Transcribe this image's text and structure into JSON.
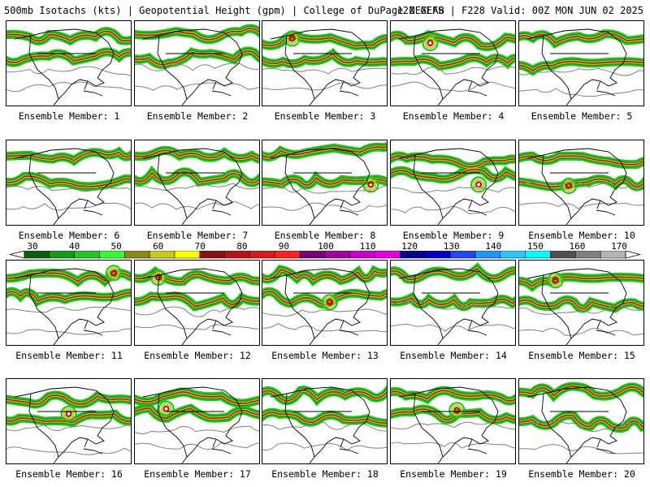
{
  "header": {
    "left": "500mb Isotachs (kts) | Geopotential Height (gpm) | College of DuPage NEXLAB",
    "right": "12Z GEFS | F228 Valid: 00Z MON JUN 02 2025"
  },
  "members": [
    "Ensemble Member: 1",
    "Ensemble Member: 2",
    "Ensemble Member: 3",
    "Ensemble Member: 4",
    "Ensemble Member: 5",
    "Ensemble Member: 6",
    "Ensemble Member: 7",
    "Ensemble Member: 8",
    "Ensemble Member: 9",
    "Ensemble Member: 10",
    "Ensemble Member: 11",
    "Ensemble Member: 12",
    "Ensemble Member: 13",
    "Ensemble Member: 14",
    "Ensemble Member: 15",
    "Ensemble Member: 16",
    "Ensemble Member: 17",
    "Ensemble Member: 18",
    "Ensemble Member: 19",
    "Ensemble Member: 20"
  ],
  "colorbar": {
    "ticks": [
      "30",
      "40",
      "50",
      "60",
      "70",
      "80",
      "90",
      "100",
      "110",
      "120",
      "130",
      "140",
      "150",
      "160",
      "170"
    ],
    "colors": [
      "#0a5d0a",
      "#139a13",
      "#1ec81e",
      "#32ff32",
      "#8a8a1a",
      "#c8c81e",
      "#ffff00",
      "#8b1010",
      "#b41414",
      "#dc1a1a",
      "#ff2020",
      "#780078",
      "#a000a0",
      "#c800c8",
      "#e600e6",
      "#00008c",
      "#0000c8",
      "#1e46ff",
      "#1e96ff",
      "#28c8ff",
      "#00ffff",
      "#505050",
      "#808080",
      "#b4b4b4"
    ]
  },
  "colors": {
    "map_line": "#000000",
    "height_contour": "#808080",
    "jet_core": "#b41414",
    "jet_mid": "#c8c81e",
    "jet_low": "#1ec81e"
  }
}
